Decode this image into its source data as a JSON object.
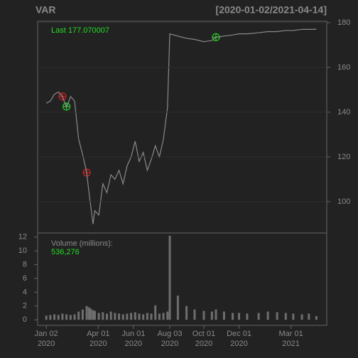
{
  "chart_data": [
    {
      "type": "line",
      "title": "VAR",
      "subtitle": "[2020-01-02/2021-04-14]",
      "annotation": "Last 177.070007",
      "x": [
        "2020-01-02",
        "2020-01-09",
        "2020-01-16",
        "2020-01-23",
        "2020-01-30",
        "2020-02-06",
        "2020-02-13",
        "2020-02-20",
        "2020-02-27",
        "2020-03-05",
        "2020-03-12",
        "2020-03-16",
        "2020-03-19",
        "2020-03-23",
        "2020-03-26",
        "2020-04-02",
        "2020-04-09",
        "2020-04-16",
        "2020-04-23",
        "2020-04-30",
        "2020-05-07",
        "2020-05-14",
        "2020-05-21",
        "2020-05-28",
        "2020-06-04",
        "2020-06-11",
        "2020-06-18",
        "2020-06-25",
        "2020-07-02",
        "2020-07-09",
        "2020-07-16",
        "2020-07-23",
        "2020-07-30",
        "2020-08-03",
        "2020-08-17",
        "2020-09-01",
        "2020-09-15",
        "2020-10-01",
        "2020-10-15",
        "2020-10-22",
        "2020-11-05",
        "2020-11-20",
        "2020-12-01",
        "2020-12-15",
        "2021-01-04",
        "2021-01-20",
        "2021-02-05",
        "2021-02-20",
        "2021-03-05",
        "2021-03-20",
        "2021-04-01",
        "2021-04-14"
      ],
      "series": [
        {
          "color": "#8a8a8a",
          "values": [
            144,
            145,
            148,
            149,
            147,
            142,
            147,
            145,
            128,
            121,
            113,
            104,
            98,
            90,
            96,
            94,
            108,
            104,
            112,
            110,
            114,
            108,
            116,
            120,
            127,
            118,
            122,
            114,
            119,
            125,
            120,
            128,
            142,
            175,
            174,
            173,
            172.5,
            171.5,
            172,
            173.5,
            174,
            174.5,
            175,
            175,
            175.5,
            176,
            176,
            176.5,
            176.5,
            177,
            177,
            177.07
          ]
        }
      ],
      "signals": [
        {
          "x": "2020-01-30",
          "y": 147,
          "color": "#cc2222"
        },
        {
          "x": "2020-02-06",
          "y": 142.5,
          "color": "#22cc22"
        },
        {
          "x": "2020-03-12",
          "y": 113,
          "color": "#cc2222"
        },
        {
          "x": "2020-10-22",
          "y": 173.5,
          "color": "#22cc22"
        }
      ],
      "xlim": [
        "2019-12-18",
        "2021-05-02"
      ],
      "ylim": [
        86,
        180.6
      ],
      "yticks": [
        100,
        120,
        140,
        160,
        180
      ],
      "grid": true
    },
    {
      "type": "bar",
      "annotation": "Volume (millions):",
      "last_label": "536,276",
      "color": "#6e6e6e",
      "x": [
        "2020-01-02",
        "2020-01-09",
        "2020-01-16",
        "2020-01-23",
        "2020-01-30",
        "2020-02-06",
        "2020-02-13",
        "2020-02-20",
        "2020-02-27",
        "2020-03-05",
        "2020-03-12",
        "2020-03-16",
        "2020-03-19",
        "2020-03-23",
        "2020-03-26",
        "2020-04-02",
        "2020-04-09",
        "2020-04-16",
        "2020-04-23",
        "2020-04-30",
        "2020-05-07",
        "2020-05-14",
        "2020-05-21",
        "2020-05-28",
        "2020-06-04",
        "2020-06-11",
        "2020-06-18",
        "2020-06-25",
        "2020-07-02",
        "2020-07-09",
        "2020-07-16",
        "2020-07-23",
        "2020-07-30",
        "2020-08-03",
        "2020-08-17",
        "2020-09-01",
        "2020-09-15",
        "2020-10-01",
        "2020-10-15",
        "2020-10-22",
        "2020-11-05",
        "2020-11-20",
        "2020-12-01",
        "2020-12-15",
        "2021-01-04",
        "2021-01-20",
        "2021-02-05",
        "2021-02-20",
        "2021-03-05",
        "2021-03-20",
        "2021-04-01",
        "2021-04-14"
      ],
      "values": [
        0.6,
        0.7,
        0.8,
        0.7,
        0.9,
        0.8,
        0.7,
        0.8,
        1.2,
        1.5,
        2.0,
        1.8,
        1.6,
        1.4,
        1.3,
        1.0,
        1.1,
        0.9,
        1.2,
        1.0,
        0.9,
        0.8,
        0.9,
        1.0,
        1.1,
        0.9,
        0.8,
        1.0,
        0.9,
        2.1,
        0.9,
        1.0,
        1.2,
        12.2,
        3.5,
        2.0,
        1.5,
        1.3,
        1.2,
        1.5,
        1.2,
        1.0,
        1.0,
        0.9,
        1.0,
        1.2,
        1.1,
        1.0,
        0.9,
        0.8,
        0.9,
        0.536276
      ],
      "xlim": [
        "2019-12-18",
        "2021-05-02"
      ],
      "ylim": [
        -0.8,
        12.6
      ],
      "yticks": [
        0,
        2,
        4,
        6,
        8,
        10,
        12
      ],
      "xticks": [
        {
          "value": "2020-01-02",
          "label": "Jan 02\n2020"
        },
        {
          "value": "2020-04-01",
          "label": "Apr 01\n2020"
        },
        {
          "value": "2020-06-01",
          "label": "Jun 01\n2020"
        },
        {
          "value": "2020-08-03",
          "label": "Aug 03\n2020"
        },
        {
          "value": "2020-10-01",
          "label": "Oct 01\n2020"
        },
        {
          "value": "2020-12-01",
          "label": "Dec 01\n2020"
        },
        {
          "value": "2021-03-01",
          "label": "Mar 01\n2021"
        }
      ]
    }
  ]
}
